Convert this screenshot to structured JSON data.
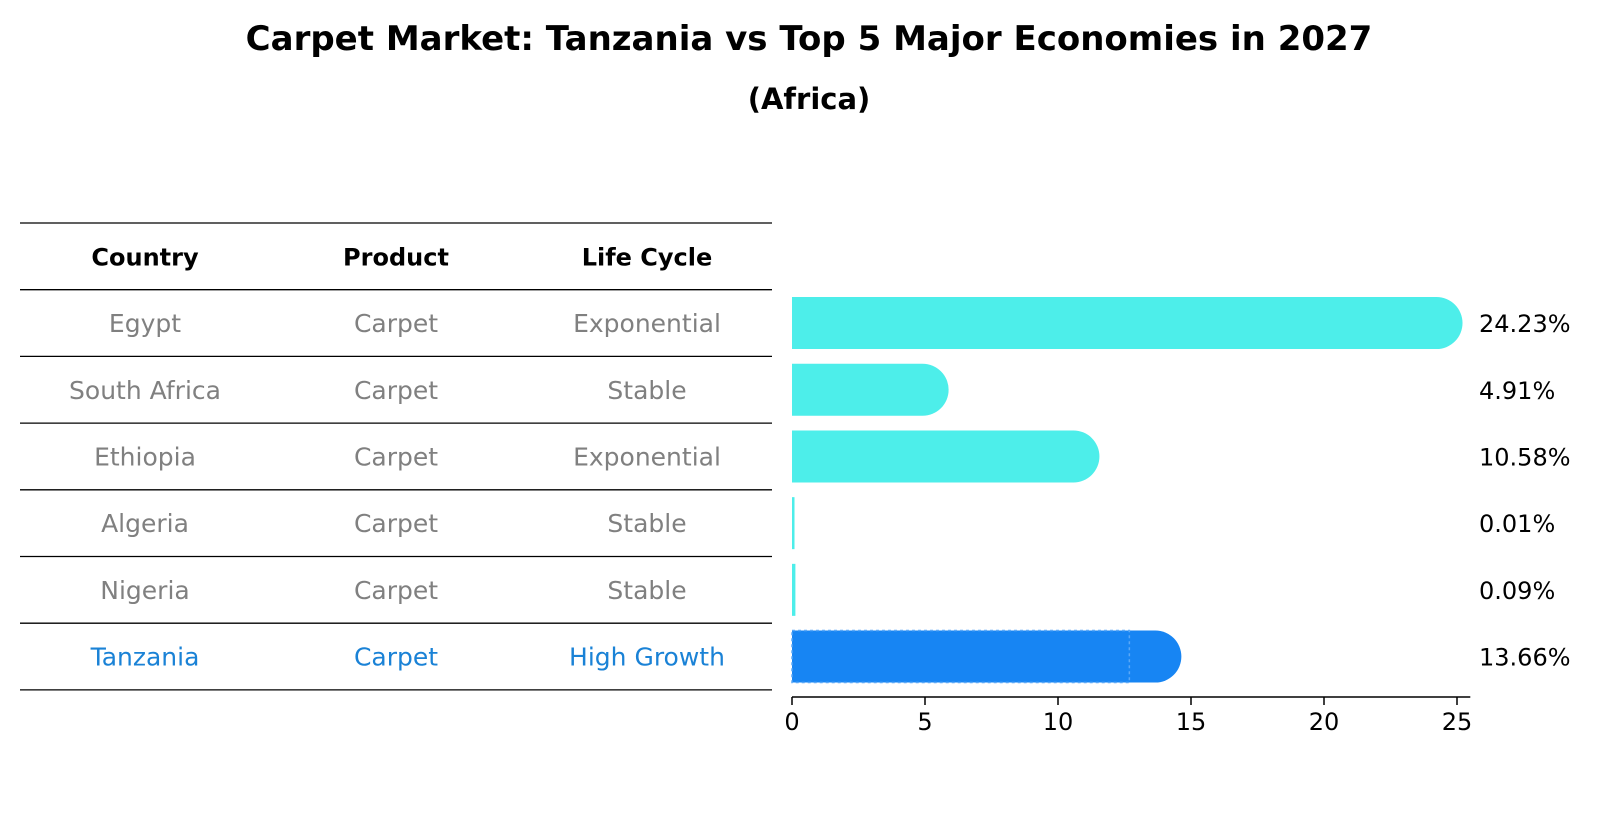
{
  "chart_data": {
    "type": "bar",
    "orientation": "horizontal",
    "title": "Carpet Market: Tanzania vs Top 5 Major Economies in 2027",
    "subtitle": "(Africa)",
    "table": {
      "headers": [
        "Country",
        "Product",
        "Life Cycle"
      ],
      "rows": [
        {
          "country": "Egypt",
          "product": "Carpet",
          "life_cycle": "Exponential",
          "highlight": false
        },
        {
          "country": "South Africa",
          "product": "Carpet",
          "life_cycle": "Stable",
          "highlight": false
        },
        {
          "country": "Ethiopia",
          "product": "Carpet",
          "life_cycle": "Exponential",
          "highlight": false
        },
        {
          "country": "Algeria",
          "product": "Carpet",
          "life_cycle": "Stable",
          "highlight": false
        },
        {
          "country": "Nigeria",
          "product": "Carpet",
          "life_cycle": "Stable",
          "highlight": false
        },
        {
          "country": "Tanzania",
          "product": "Carpet",
          "life_cycle": "High Growth",
          "highlight": true
        }
      ]
    },
    "categories": [
      "Egypt",
      "South Africa",
      "Ethiopia",
      "Algeria",
      "Nigeria",
      "Tanzania"
    ],
    "values": [
      24.23,
      4.91,
      10.58,
      0.01,
      0.09,
      13.66
    ],
    "value_labels": [
      "24.23%",
      "4.91%",
      "10.58%",
      "0.01%",
      "0.09%",
      "13.66%"
    ],
    "xlim": [
      0,
      25.5
    ],
    "xticks": [
      0,
      5,
      10,
      15,
      20,
      25
    ],
    "xtick_labels": [
      "0",
      "5",
      "10",
      "15",
      "20",
      "25"
    ],
    "xlabel": "",
    "ylabel": "",
    "grid": false,
    "legend": "none",
    "colors": {
      "bar_default": "#4deeea",
      "bar_highlight": "#1785f3",
      "text_default": "#808080",
      "text_highlight": "#1a82d6",
      "axis": "#000000"
    }
  }
}
